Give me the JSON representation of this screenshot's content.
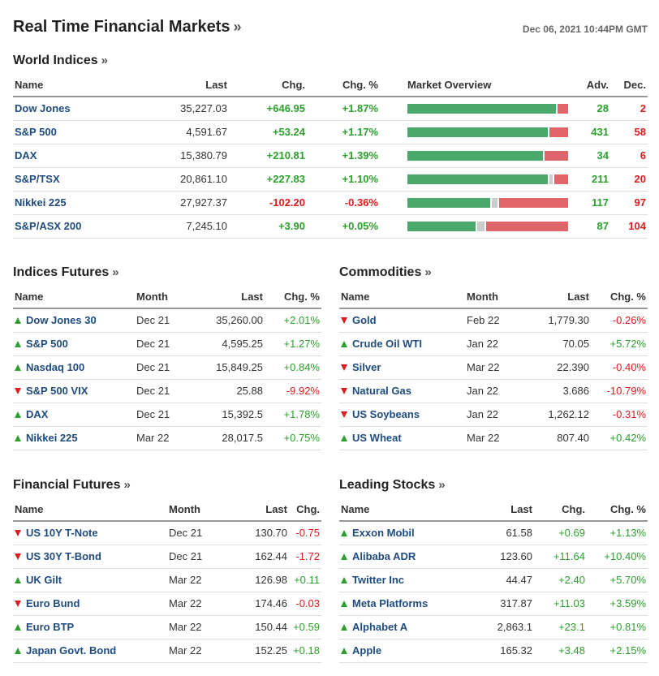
{
  "header": {
    "title": "Real Time Financial Markets",
    "more": "»",
    "timestamp": "Dec 06, 2021 10:44PM GMT"
  },
  "world_indices": {
    "title": "World Indices",
    "more": "»",
    "columns": [
      "Name",
      "Last",
      "Chg.",
      "Chg. %",
      "Market Overview",
      "Adv.",
      "Dec."
    ],
    "rows": [
      {
        "name": "Dow Jones",
        "last": "35,227.03",
        "chg": "+646.95",
        "pct": "+1.87%",
        "adv": "28",
        "dec": "2",
        "dir": "up",
        "overview": {
          "adv": 28,
          "unch": 0,
          "dec": 2
        }
      },
      {
        "name": "S&P 500",
        "last": "4,591.67",
        "chg": "+53.24",
        "pct": "+1.17%",
        "adv": "431",
        "dec": "58",
        "dir": "up",
        "overview": {
          "adv": 431,
          "unch": 0,
          "dec": 58
        }
      },
      {
        "name": "DAX",
        "last": "15,380.79",
        "chg": "+210.81",
        "pct": "+1.39%",
        "adv": "34",
        "dec": "6",
        "dir": "up",
        "overview": {
          "adv": 34,
          "unch": 0,
          "dec": 6
        }
      },
      {
        "name": "S&P/TSX",
        "last": "20,861.10",
        "chg": "+227.83",
        "pct": "+1.10%",
        "adv": "211",
        "dec": "20",
        "dir": "up",
        "overview": {
          "adv": 211,
          "unch": 2,
          "dec": 20
        }
      },
      {
        "name": "Nikkei 225",
        "last": "27,927.37",
        "chg": "-102.20",
        "pct": "-0.36%",
        "adv": "117",
        "dec": "97",
        "dir": "down",
        "overview": {
          "adv": 117,
          "unch": 8,
          "dec": 97
        }
      },
      {
        "name": "S&P/ASX 200",
        "last": "7,245.10",
        "chg": "+3.90",
        "pct": "+0.05%",
        "adv": "87",
        "dec": "104",
        "dir": "up",
        "overview": {
          "adv": 87,
          "unch": 9,
          "dec": 104
        }
      }
    ]
  },
  "indices_futures": {
    "title": "Indices Futures",
    "more": "»",
    "columns": [
      "Name",
      "Month",
      "Last",
      "Chg. %"
    ],
    "rows": [
      {
        "name": "Dow Jones 30",
        "month": "Dec 21",
        "last": "35,260.00",
        "pct": "+2.01%",
        "dir": "up"
      },
      {
        "name": "S&P 500",
        "month": "Dec 21",
        "last": "4,595.25",
        "pct": "+1.27%",
        "dir": "up"
      },
      {
        "name": "Nasdaq 100",
        "month": "Dec 21",
        "last": "15,849.25",
        "pct": "+0.84%",
        "dir": "up"
      },
      {
        "name": "S&P 500 VIX",
        "month": "Dec 21",
        "last": "25.88",
        "pct": "-9.92%",
        "dir": "down"
      },
      {
        "name": "DAX",
        "month": "Dec 21",
        "last": "15,392.5",
        "pct": "+1.78%",
        "dir": "up"
      },
      {
        "name": "Nikkei 225",
        "month": "Mar 22",
        "last": "28,017.5",
        "pct": "+0.75%",
        "dir": "up"
      }
    ]
  },
  "commodities": {
    "title": "Commodities",
    "more": "»",
    "columns": [
      "Name",
      "Month",
      "Last",
      "Chg. %"
    ],
    "rows": [
      {
        "name": "Gold",
        "month": "Feb 22",
        "last": "1,779.30",
        "pct": "-0.26%",
        "dir": "down"
      },
      {
        "name": "Crude Oil WTI",
        "month": "Jan 22",
        "last": "70.05",
        "pct": "+5.72%",
        "dir": "up"
      },
      {
        "name": "Silver",
        "month": "Mar 22",
        "last": "22.390",
        "pct": "-0.40%",
        "dir": "down"
      },
      {
        "name": "Natural Gas",
        "month": "Jan 22",
        "last": "3.686",
        "pct": "-10.79%",
        "dir": "down"
      },
      {
        "name": "US Soybeans",
        "month": "Jan 22",
        "last": "1,262.12",
        "pct": "-0.31%",
        "dir": "down"
      },
      {
        "name": "US Wheat",
        "month": "Mar 22",
        "last": "807.40",
        "pct": "+0.42%",
        "dir": "up"
      }
    ]
  },
  "financial_futures": {
    "title": "Financial Futures",
    "more": "»",
    "columns": [
      "Name",
      "Month",
      "Last",
      "Chg."
    ],
    "rows": [
      {
        "name": "US 10Y T-Note",
        "month": "Dec 21",
        "last": "130.70",
        "chg": "-0.75",
        "dir": "down"
      },
      {
        "name": "US 30Y T-Bond",
        "month": "Dec 21",
        "last": "162.44",
        "chg": "-1.72",
        "dir": "down"
      },
      {
        "name": "UK Gilt",
        "month": "Mar 22",
        "last": "126.98",
        "chg": "+0.11",
        "dir": "up"
      },
      {
        "name": "Euro Bund",
        "month": "Mar 22",
        "last": "174.46",
        "chg": "-0.03",
        "dir": "down"
      },
      {
        "name": "Euro BTP",
        "month": "Mar 22",
        "last": "150.44",
        "chg": "+0.59",
        "dir": "up"
      },
      {
        "name": "Japan Govt. Bond",
        "month": "Mar 22",
        "last": "152.25",
        "chg": "+0.18",
        "dir": "up"
      }
    ]
  },
  "leading_stocks": {
    "title": "Leading Stocks",
    "more": "»",
    "columns": [
      "Name",
      "Last",
      "Chg.",
      "Chg. %"
    ],
    "rows": [
      {
        "name": "Exxon Mobil",
        "last": "61.58",
        "chg": "+0.69",
        "pct": "+1.13%",
        "dir": "up"
      },
      {
        "name": "Alibaba ADR",
        "last": "123.60",
        "chg": "+11.64",
        "pct": "+10.40%",
        "dir": "up"
      },
      {
        "name": "Twitter Inc",
        "last": "44.47",
        "chg": "+2.40",
        "pct": "+5.70%",
        "dir": "up"
      },
      {
        "name": "Meta Platforms",
        "last": "317.87",
        "chg": "+11.03",
        "pct": "+3.59%",
        "dir": "up"
      },
      {
        "name": "Alphabet A",
        "last": "2,863.1",
        "chg": "+23.1",
        "pct": "+0.81%",
        "dir": "up"
      },
      {
        "name": "Apple",
        "last": "165.32",
        "chg": "+3.48",
        "pct": "+2.15%",
        "dir": "up"
      }
    ]
  },
  "colors": {
    "up": "#2ca02c",
    "down": "#e01b1b",
    "link": "#1e4b80",
    "bar_adv": "#4aa86a",
    "bar_unch": "#cccccc",
    "bar_dec": "#e0656a"
  },
  "icons": {
    "up": "triangle-up-icon",
    "down": "triangle-down-icon"
  }
}
